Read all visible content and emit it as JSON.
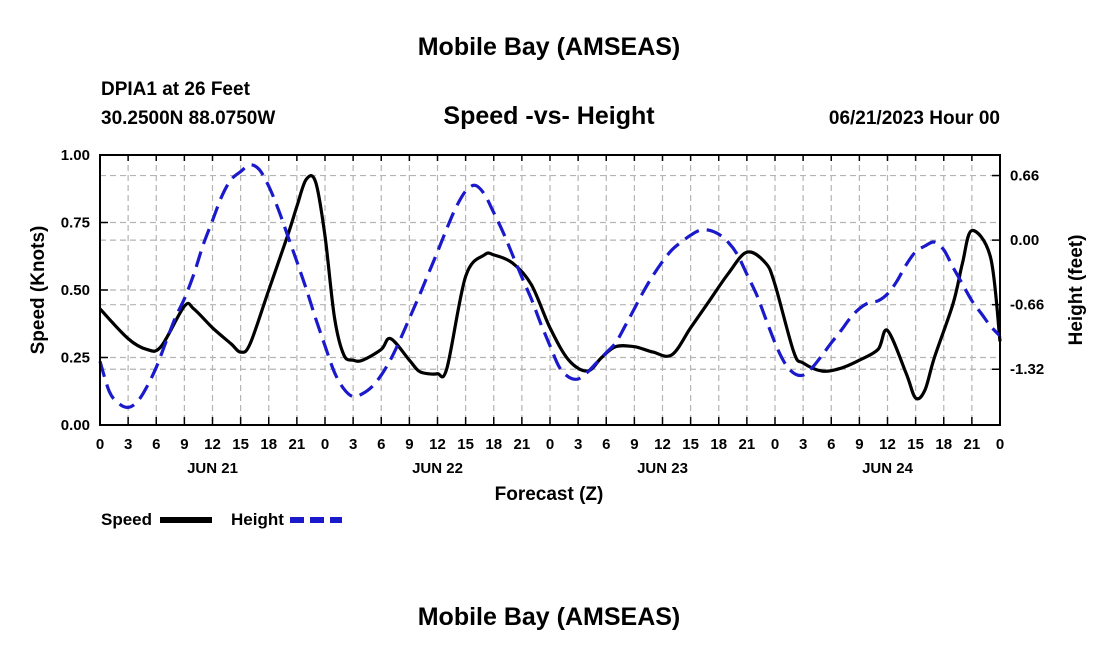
{
  "page": {
    "title": "Mobile Bay (AMSEAS)",
    "bottom_title": "Mobile Bay (AMSEAS)"
  },
  "chart_data": {
    "type": "line",
    "title": "Speed -vs- Height",
    "station": "DPIA1 at 26 Feet",
    "location": "30.2500N  88.0750W",
    "forecast_start": "06/21/2023 Hour 00",
    "xlabel": "Forecast (Z)",
    "ylabel_left": "Speed (Knots)",
    "ylabel_right": "Height (feet)",
    "x_range_hours": [
      0,
      96
    ],
    "x_tick_step_hours": 3,
    "x_tick_labels": [
      "0",
      "3",
      "6",
      "9",
      "12",
      "15",
      "18",
      "21",
      "0",
      "3",
      "6",
      "9",
      "12",
      "15",
      "18",
      "21",
      "0",
      "3",
      "6",
      "9",
      "12",
      "15",
      "18",
      "21",
      "0",
      "3",
      "6",
      "9",
      "12",
      "15",
      "18",
      "21",
      "0"
    ],
    "date_labels": [
      {
        "hour": 12,
        "label": "JUN 21"
      },
      {
        "hour": 36,
        "label": "JUN 22"
      },
      {
        "hour": 60,
        "label": "JUN 23"
      },
      {
        "hour": 84,
        "label": "JUN 24"
      }
    ],
    "ylim_left": [
      0,
      1.0
    ],
    "y_ticks_left": [
      "0.00",
      "0.25",
      "0.50",
      "0.75",
      "1.00"
    ],
    "y_tick_values_left": [
      0,
      0.25,
      0.5,
      0.75,
      1.0
    ],
    "ylim_right": [
      -1.89,
      0.87
    ],
    "y_ticks_right": [
      "-1.32",
      "-0.66",
      "0.00",
      "0.66"
    ],
    "y_tick_values_right": [
      -1.32,
      -0.66,
      0,
      0.66
    ],
    "grid": true,
    "series": [
      {
        "name": "Speed",
        "color": "#000000",
        "style": "solid",
        "axis": "left",
        "x": [
          0,
          3,
          5,
          6.5,
          9,
          10,
          12,
          14,
          15,
          16,
          18,
          20,
          21,
          22,
          23,
          24,
          25,
          26,
          27,
          28,
          30,
          31,
          33,
          34,
          35,
          36,
          37,
          39,
          41,
          42,
          44,
          46,
          48,
          50,
          52,
          53.5,
          55,
          57,
          59,
          61,
          63,
          65,
          67,
          69,
          71,
          72,
          74,
          75,
          77,
          79,
          81,
          83,
          84,
          86,
          87,
          88,
          89,
          91,
          92,
          93,
          95,
          96
        ],
        "values": [
          0.43,
          0.32,
          0.28,
          0.29,
          0.44,
          0.43,
          0.36,
          0.3,
          0.27,
          0.3,
          0.5,
          0.7,
          0.81,
          0.91,
          0.9,
          0.7,
          0.4,
          0.26,
          0.24,
          0.24,
          0.28,
          0.32,
          0.24,
          0.2,
          0.19,
          0.19,
          0.21,
          0.55,
          0.63,
          0.63,
          0.6,
          0.52,
          0.36,
          0.24,
          0.2,
          0.25,
          0.29,
          0.29,
          0.27,
          0.26,
          0.36,
          0.46,
          0.56,
          0.64,
          0.6,
          0.52,
          0.27,
          0.23,
          0.2,
          0.21,
          0.24,
          0.28,
          0.35,
          0.19,
          0.1,
          0.13,
          0.25,
          0.45,
          0.6,
          0.72,
          0.62,
          0.31
        ]
      },
      {
        "name": "Height",
        "color": "#1a1acc",
        "style": "dashed",
        "axis": "right",
        "x": [
          0,
          1,
          2,
          3,
          4,
          5,
          6,
          7,
          8,
          9,
          10,
          11,
          12,
          13,
          14,
          15,
          16,
          17,
          18,
          19,
          20,
          21,
          22,
          23,
          24,
          25,
          26,
          27,
          28,
          29,
          30,
          31,
          32,
          33,
          34,
          35,
          36,
          37,
          38,
          39,
          40,
          41,
          42,
          43,
          44,
          45,
          46,
          47,
          48,
          49,
          50,
          51,
          52,
          53,
          54,
          55,
          56,
          57,
          58,
          59,
          60,
          61,
          62,
          63,
          64,
          65,
          66,
          67,
          68,
          69,
          70,
          71,
          72,
          73,
          74,
          75,
          76,
          77,
          78,
          79,
          80,
          81,
          82,
          83,
          84,
          85,
          86,
          87,
          88,
          89,
          90,
          91,
          92,
          93,
          94,
          95,
          96
        ],
        "values": [
          -1.24,
          -1.55,
          -1.67,
          -1.71,
          -1.65,
          -1.5,
          -1.3,
          -1.05,
          -0.8,
          -0.6,
          -0.35,
          -0.05,
          0.2,
          0.45,
          0.62,
          0.7,
          0.77,
          0.72,
          0.55,
          0.32,
          0.05,
          -0.22,
          -0.5,
          -0.8,
          -1.08,
          -1.35,
          -1.52,
          -1.6,
          -1.57,
          -1.5,
          -1.38,
          -1.22,
          -1.02,
          -0.8,
          -0.58,
          -0.35,
          -0.12,
          0.12,
          0.34,
          0.5,
          0.56,
          0.47,
          0.28,
          0.08,
          -0.15,
          -0.38,
          -0.6,
          -0.85,
          -1.08,
          -1.3,
          -1.4,
          -1.42,
          -1.35,
          -1.25,
          -1.15,
          -1.05,
          -0.88,
          -0.7,
          -0.52,
          -0.36,
          -0.22,
          -0.1,
          -0.02,
          0.05,
          0.1,
          0.1,
          0.06,
          -0.02,
          -0.15,
          -0.35,
          -0.55,
          -0.8,
          -1.05,
          -1.25,
          -1.36,
          -1.38,
          -1.3,
          -1.18,
          -1.05,
          -0.93,
          -0.8,
          -0.7,
          -0.64,
          -0.62,
          -0.55,
          -0.42,
          -0.25,
          -0.12,
          -0.06,
          -0.02,
          -0.1,
          -0.28,
          -0.45,
          -0.62,
          -0.75,
          -0.88,
          -0.98
        ]
      }
    ],
    "legend": [
      {
        "label": "Speed",
        "color": "#000000",
        "style": "solid"
      },
      {
        "label": "Height",
        "color": "#1a1acc",
        "style": "dashed"
      }
    ],
    "legend_position": "bottom-left"
  }
}
